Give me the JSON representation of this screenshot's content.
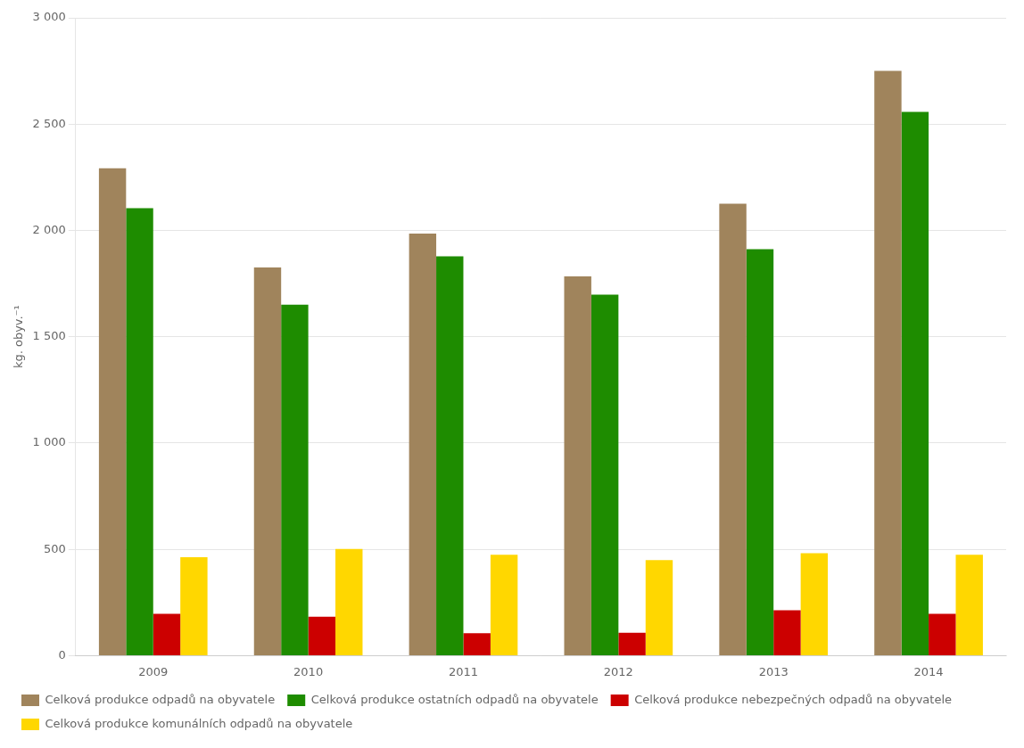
{
  "chart_data": {
    "type": "bar",
    "categories": [
      "2009",
      "2010",
      "2011",
      "2012",
      "2013",
      "2014"
    ],
    "series": [
      {
        "name": "Celková produkce odpadů na obyvatele",
        "color": "#A0845C",
        "values": [
          2292,
          1826,
          1985,
          1784,
          2126,
          2751
        ]
      },
      {
        "name": "Celková produkce ostatních odpadů na obyvatele",
        "color": "#1e8c00",
        "values": [
          2105,
          1651,
          1878,
          1698,
          1912,
          2558
        ]
      },
      {
        "name": "Celková produkce nebezpečných odpadů na obyvatele",
        "color": "#cc0000",
        "values": [
          197,
          183,
          105,
          108,
          213,
          197
        ]
      },
      {
        "name": "Celková produkce komunálních odpadů na obyvatele",
        "color": "#FFD700",
        "values": [
          463,
          502,
          475,
          449,
          482,
          474
        ]
      }
    ],
    "ylabel": "kg. obyv.⁻¹",
    "ylim": [
      0,
      3000
    ],
    "yticks": [
      0,
      500,
      {
        "value": 1000,
        "label": "1 000"
      },
      {
        "value": 1500,
        "label": "1 500"
      },
      {
        "value": 2000,
        "label": "2 000"
      },
      {
        "value": 2500,
        "label": "2 500"
      },
      {
        "value": 3000,
        "label": "3 000"
      }
    ],
    "grid": true,
    "legend": "bottom"
  }
}
